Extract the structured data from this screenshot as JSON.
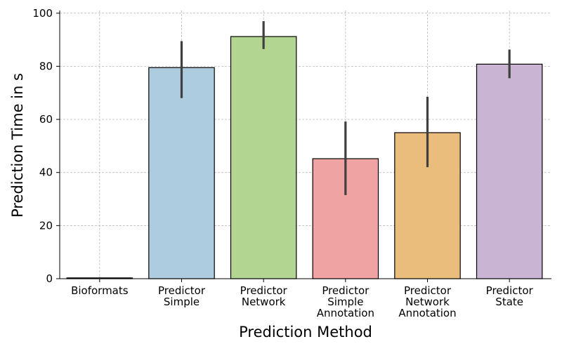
{
  "chart_data": {
    "type": "bar",
    "title": "",
    "xlabel": "Prediction Method",
    "ylabel": "Prediction Time in s",
    "ylim": [
      0,
      101
    ],
    "yticks": [
      0,
      20,
      40,
      60,
      80,
      100
    ],
    "grid": true,
    "categories": [
      [
        "Bioformats"
      ],
      [
        "Predictor",
        "Simple"
      ],
      [
        "Predictor",
        "Network"
      ],
      [
        "Predictor",
        "Simple",
        "Annotation"
      ],
      [
        "Predictor",
        "Network",
        "Annotation"
      ],
      [
        "Predictor",
        "State"
      ]
    ],
    "values": [
      0.3,
      79.5,
      91.2,
      45.2,
      55.0,
      80.8
    ],
    "error_bars": [
      [
        0.1,
        0.6
      ],
      [
        68.0,
        89.5
      ],
      [
        86.5,
        97.0
      ],
      [
        31.5,
        59.2
      ],
      [
        42.0,
        68.5
      ],
      [
        75.5,
        86.3
      ]
    ],
    "colors": [
      "#a6cee3",
      "#aecce0",
      "#b2d591",
      "#f0a3a3",
      "#ebbd7d",
      "#c9b4d3"
    ]
  }
}
